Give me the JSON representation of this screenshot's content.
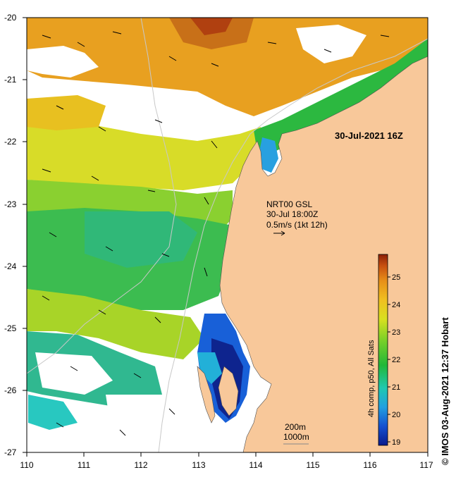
{
  "map": {
    "lon_range": [
      110,
      117
    ],
    "lat_range": [
      -27,
      -20
    ],
    "x_ticks": [
      "110",
      "111",
      "112",
      "113",
      "114",
      "115",
      "116",
      "117"
    ],
    "y_ticks": [
      "-20",
      "-21",
      "-22",
      "-23",
      "-24",
      "-25",
      "-26",
      "-27"
    ],
    "date_label": "30-Jul-2021 16Z",
    "current_label_1": "NRT00 GSL",
    "current_label_2": "30-Jul 18:00Z",
    "current_label_3": "0.5m/s (1kt 12h)",
    "isobath_1": "200m",
    "isobath_2": "1000m",
    "credit": "© IMOS 03-Aug-2021 12:37 Hobart",
    "colors": {
      "land": "#f8c89a",
      "no_data": "#ffffff",
      "arrow": "#000000",
      "isobath": "#c8c8c8"
    }
  },
  "colorbar": {
    "title": "4h comp, p50, All Sats",
    "ticks": [
      "19",
      "20",
      "21",
      "22",
      "23",
      "24",
      "25"
    ],
    "range": [
      18.8,
      25.8
    ],
    "gradient": [
      "#0a1a8c",
      "#1550d0",
      "#22a0e0",
      "#20c8b0",
      "#22b838",
      "#7ad028",
      "#d8e020",
      "#f0c020",
      "#e89018",
      "#c85010",
      "#8c2008"
    ]
  }
}
